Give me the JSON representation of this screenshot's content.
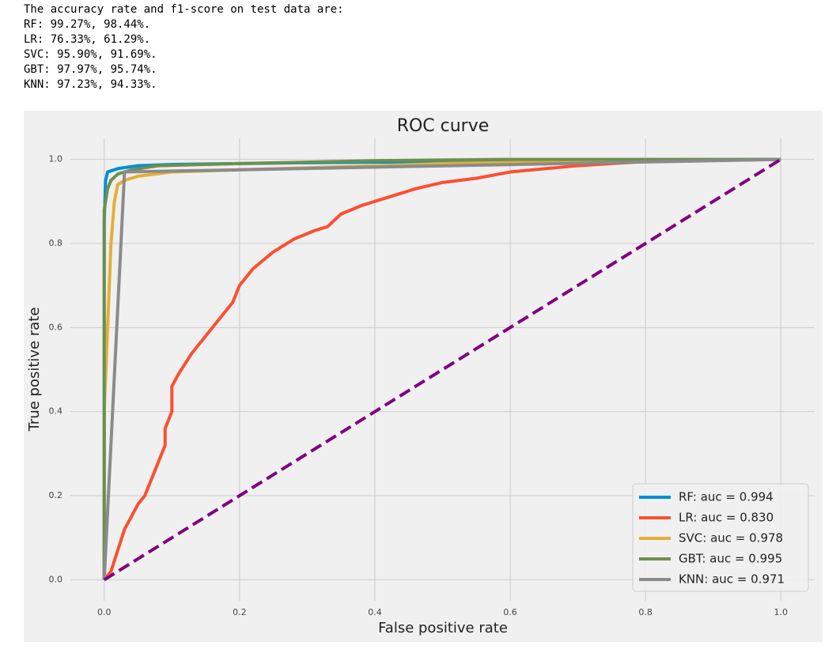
{
  "output": {
    "lines": [
      "The accuracy rate and f1-score on test data are:",
      "RF: 99.27%, 98.44%.",
      "LR: 76.33%, 61.29%.",
      "SVC: 95.90%, 91.69%.",
      "GBT: 97.97%, 95.74%.",
      "KNN: 97.23%, 94.33%."
    ]
  },
  "chart_data": {
    "type": "line",
    "title": "ROC curve",
    "x_label": "False positive rate",
    "y_label": "True positive rate",
    "xlim": [
      -0.05,
      1.05
    ],
    "ylim": [
      -0.05,
      1.05
    ],
    "xticks": [
      {
        "value": 0,
        "label": "0.0"
      },
      0.2,
      0.4,
      0.6,
      0.8,
      {
        "value": 1,
        "label": "1.0"
      }
    ],
    "yticks": [
      {
        "value": 0,
        "label": "0.0"
      },
      0.2,
      0.4,
      0.6,
      0.8,
      {
        "value": 1,
        "label": "1.0"
      }
    ],
    "grid": true,
    "legend": "lower right",
    "series": [
      {
        "name": "RF: auc = 0.994",
        "color": "#008fd5",
        "x": [
          0,
          0,
          0.002,
          0.005,
          0.02,
          0.05,
          0.1,
          0.3,
          0.5,
          1
        ],
        "values": [
          0,
          0.85,
          0.95,
          0.97,
          0.978,
          0.985,
          0.988,
          0.992,
          0.995,
          1
        ]
      },
      {
        "name": "LR: auc = 0.830",
        "color": "#fc4f30",
        "x": [
          0,
          0.01,
          0.02,
          0.03,
          0.04,
          0.05,
          0.06,
          0.07,
          0.08,
          0.09,
          0.09,
          0.1,
          0.1,
          0.11,
          0.13,
          0.15,
          0.17,
          0.19,
          0.2,
          0.22,
          0.25,
          0.28,
          0.31,
          0.33,
          0.35,
          0.38,
          0.42,
          0.46,
          0.5,
          0.55,
          0.6,
          0.7,
          0.8,
          1
        ],
        "values": [
          0,
          0.02,
          0.07,
          0.12,
          0.15,
          0.18,
          0.2,
          0.24,
          0.28,
          0.32,
          0.36,
          0.4,
          0.46,
          0.49,
          0.54,
          0.58,
          0.62,
          0.66,
          0.7,
          0.74,
          0.78,
          0.81,
          0.83,
          0.84,
          0.87,
          0.89,
          0.91,
          0.93,
          0.945,
          0.955,
          0.97,
          0.985,
          0.995,
          1
        ]
      },
      {
        "name": "SVC: auc = 0.978",
        "color": "#e5ae38",
        "x": [
          0,
          0,
          0.01,
          0.015,
          0.02,
          0.03,
          0.05,
          0.1,
          0.3,
          0.5,
          0.7,
          1
        ],
        "values": [
          0,
          0.4,
          0.8,
          0.9,
          0.94,
          0.95,
          0.96,
          0.97,
          0.98,
          0.99,
          0.995,
          1
        ]
      },
      {
        "name": "GBT: auc = 0.995",
        "color": "#6d904f",
        "x": [
          0,
          0,
          0.005,
          0.01,
          0.02,
          0.04,
          0.08,
          0.2,
          0.4,
          0.6,
          1
        ],
        "values": [
          0,
          0.88,
          0.93,
          0.95,
          0.965,
          0.975,
          0.985,
          0.99,
          0.997,
          1,
          1
        ]
      },
      {
        "name": "KNN: auc = 0.971",
        "color": "#8b8b8b",
        "x": [
          0,
          0.03,
          1
        ],
        "values": [
          0,
          0.97,
          1
        ]
      }
    ],
    "reference_line": {
      "x": [
        0,
        1
      ],
      "values": [
        0,
        1
      ],
      "color": "#800080",
      "style": "dashed"
    }
  }
}
